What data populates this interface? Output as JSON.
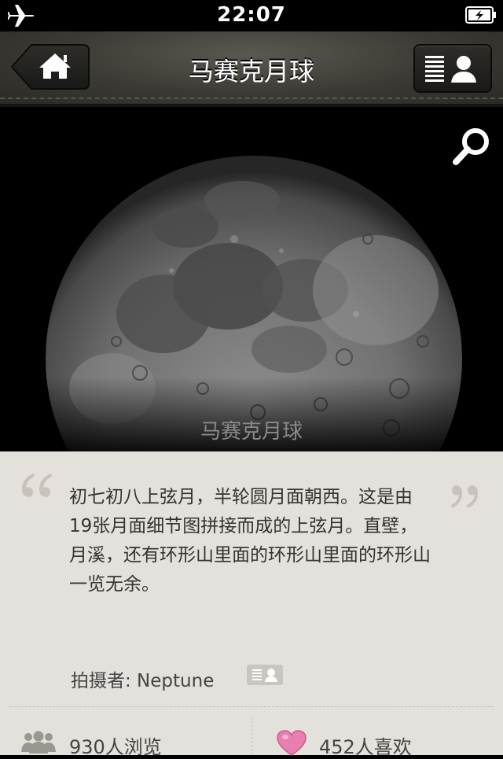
{
  "status_bar": {
    "time": "22:07",
    "airplane_icon": "airplane-icon",
    "battery_icon": "battery-charging-icon"
  },
  "nav": {
    "title": "马赛克月球",
    "home_icon": "home-icon",
    "profile_icon": "user-list-icon"
  },
  "photo": {
    "caption": "马赛克月球",
    "search_icon": "search-icon"
  },
  "description": {
    "text": "初七初八上弦月，半轮圆月面朝西。这是由19张月面细节图拼接而成的上弦月。直壁，月溪，还有环形山里面的环形山里面的环形山一览无余。"
  },
  "author": {
    "label": "拍摄者: Neptune"
  },
  "stats": {
    "views": "930人浏览",
    "likes": "452人喜欢"
  },
  "colors": {
    "panel_bg": "#e4e0db",
    "like_pink": "#e87fb0",
    "nav_bg": "#3b3933"
  }
}
